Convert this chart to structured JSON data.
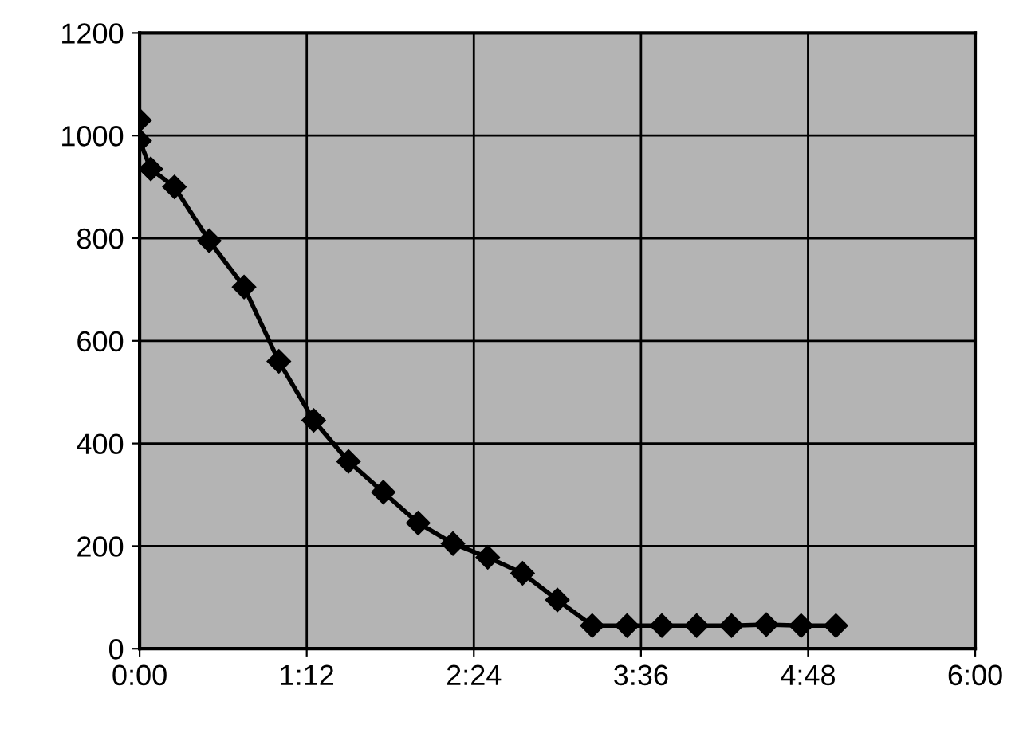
{
  "chart_data": {
    "type": "line",
    "x": [
      0,
      0,
      0.08,
      0.25,
      0.5,
      0.75,
      1.0,
      1.25,
      1.5,
      1.75,
      2.0,
      2.25,
      2.5,
      2.75,
      3.0,
      3.25,
      3.5,
      3.75,
      4.0,
      4.25,
      4.5,
      4.75,
      5.0
    ],
    "series": [
      {
        "color": "#000000",
        "values": [
          1030,
          990,
          935,
          900,
          795,
          705,
          560,
          445,
          365,
          305,
          245,
          205,
          178,
          147,
          95,
          45,
          45,
          45,
          45,
          45,
          47,
          45,
          45
        ]
      }
    ],
    "xlim": [
      0,
      6
    ],
    "xticks": [
      {
        "value": 0,
        "label": "0:00"
      },
      {
        "value": 1.2,
        "label": "1:12"
      },
      {
        "value": 2.4,
        "label": "2:24"
      },
      {
        "value": 3.6,
        "label": "3:36"
      },
      {
        "value": 4.8,
        "label": "4:48"
      },
      {
        "value": 6,
        "label": "6:00"
      }
    ],
    "ylim": [
      0,
      1200
    ],
    "yticks": [
      0,
      200,
      400,
      600,
      800,
      1000,
      1200
    ],
    "grid": true,
    "marker": "diamond",
    "line_style": "solid"
  }
}
